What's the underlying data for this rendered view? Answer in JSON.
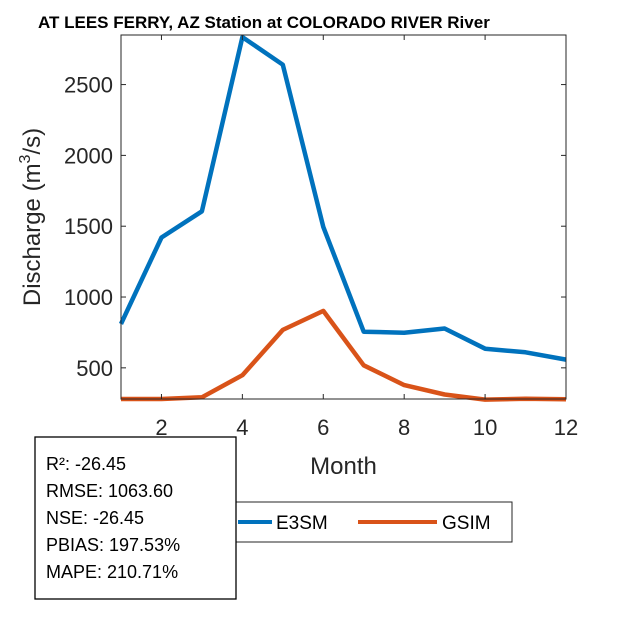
{
  "chart_data": {
    "type": "line",
    "title": "AT LEES FERRY, AZ  Station at  COLORADO RIVER  River",
    "xlabel": "Month",
    "ylabel": "Discharge (m",
    "ylabel_sup": "3",
    "ylabel_tail": "/s)",
    "xlim": [
      1,
      12
    ],
    "ylim": [
      280,
      2850
    ],
    "xticks": [
      2,
      4,
      6,
      8,
      10,
      12
    ],
    "yticks": [
      500,
      1000,
      1500,
      2000,
      2500
    ],
    "x": [
      1,
      2,
      3,
      4,
      5,
      6,
      7,
      8,
      9,
      10,
      11,
      12
    ],
    "series": [
      {
        "name": "E3SM",
        "color": "#0072BD",
        "values": [
          810,
          1420,
          1605,
          2835,
          2640,
          1495,
          755,
          748,
          778,
          635,
          610,
          558
        ]
      },
      {
        "name": "GSIM",
        "color": "#D95319",
        "values": [
          280,
          280,
          292,
          448,
          768,
          902,
          518,
          378,
          312,
          276,
          282,
          278
        ]
      }
    ]
  },
  "stats": {
    "r2": "R²: -26.45",
    "rmse": "RMSE: 1063.60",
    "nse": "NSE: -26.45",
    "pbias": "PBIAS: 197.53%",
    "mape": "MAPE: 210.71%"
  }
}
